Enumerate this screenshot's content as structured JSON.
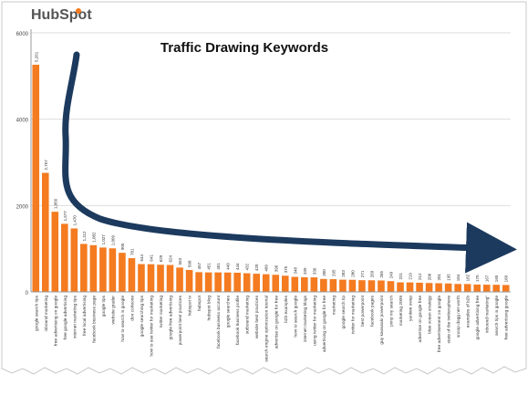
{
  "logo_text": "HubSpot",
  "chart_data": {
    "type": "bar",
    "title": "Traffic Drawing Keywords",
    "xlabel": "",
    "ylabel": "",
    "ylim": [
      0,
      6000
    ],
    "yticks": [
      0,
      2000,
      4000,
      6000
    ],
    "grid": true,
    "bar_color": "#f47b20",
    "arrow_color": "#1c3a5e",
    "categories": [
      "google search tips",
      "inbound marketing",
      "free advertising on google",
      "free google advertising",
      "internet marketing tips",
      "free local advertising",
      "facebook business page",
      "google tips",
      "website grader",
      "how to search in google",
      "don corleone",
      "google searching tips",
      "how to use twitter for marketing",
      "twitter marketing",
      "google free advertising",
      "powerpoint best practices",
      "hubspot tv",
      "hubspot",
      "hubspot blog",
      "facebook business account",
      "google searches",
      "facebook business profile",
      "outbound marketing",
      "website best practices",
      "search engine optimization tutorial",
      "advertise on google for free",
      "b2b examples",
      "how to search google",
      "internet marketing blogs",
      "using twitter for marketing",
      "advertising on google for free",
      "marketing",
      "google search tip",
      "twitter for marketing",
      "best powerpoint",
      "facebook pages",
      "guy kawasaki powerpoint",
      "pimp my search",
      "marketing 2009",
      "yankee swap",
      "advertise on google free",
      "blue ocean strategy",
      "free advertisement on google",
      "state of the twittersphere",
      "snoop dogg net worth",
      "examples of b2b",
      "google advertising free",
      "inbound marketing\"",
      "search tips in google",
      "free advertising google"
    ],
    "values": [
      5261,
      2757,
      1856,
      1577,
      1470,
      1112,
      1082,
      1027,
      1009,
      905,
      781,
      644,
      641,
      629,
      624,
      563,
      508,
      457,
      451,
      451,
      449,
      444,
      432,
      420,
      409,
      396,
      375,
      348,
      339,
      336,
      300,
      295,
      283,
      280,
      271,
      269,
      265,
      249,
      221,
      219,
      212,
      206,
      201,
      195,
      184,
      182,
      170,
      167,
      165,
      160
    ],
    "data_labels": [
      "5,261",
      "2,757",
      "1,856",
      "1,577",
      "1,470",
      "1,112",
      "1,082",
      "1,027",
      "1,009",
      "905",
      "781",
      "644",
      "641",
      "629",
      "624",
      "563",
      "508",
      "457",
      "451",
      "451",
      "449",
      "444",
      "432",
      "420",
      "409",
      "396",
      "375",
      "348",
      "339",
      "336",
      "300",
      "295",
      "283",
      "280",
      "271",
      "269",
      "265",
      "249",
      "221",
      "219",
      "212",
      "206",
      "201",
      "195",
      "184",
      "182",
      "170",
      "167",
      "165",
      "160"
    ]
  }
}
